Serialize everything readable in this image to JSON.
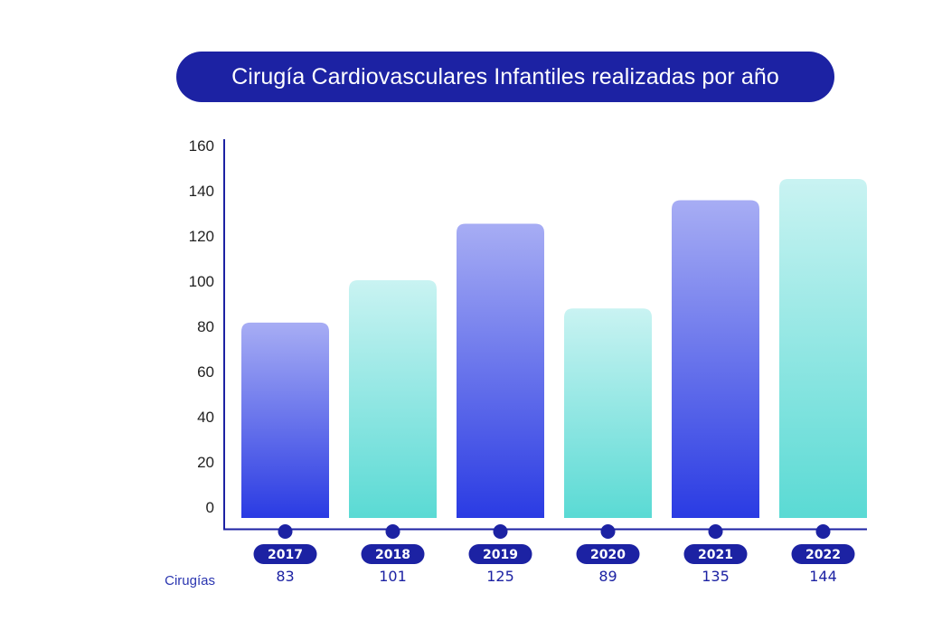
{
  "chart_data": {
    "type": "bar",
    "title": "Cirugía Cardiovasculares Infantiles realizadas por año",
    "categories": [
      "2017",
      "2018",
      "2019",
      "2020",
      "2021",
      "2022"
    ],
    "values": [
      83,
      101,
      125,
      89,
      135,
      144
    ],
    "value_labels": [
      "83",
      "101",
      "125",
      "89",
      "135",
      "144"
    ],
    "row_label": "Cirugías",
    "ylim": [
      0,
      160
    ],
    "yticks": [
      "0",
      "20",
      "40",
      "60",
      "80",
      "100",
      "120",
      "140",
      "160"
    ],
    "xlabel": "",
    "ylabel": "",
    "grid": false,
    "legend": "none",
    "colors": {
      "blue_top": "#a7adf4",
      "blue_bottom": "#2a3be3",
      "teal_top": "#c9f3f2",
      "teal_bottom": "#5adad4",
      "axis": "#1c22a3",
      "accent": "#1c22a3"
    }
  }
}
